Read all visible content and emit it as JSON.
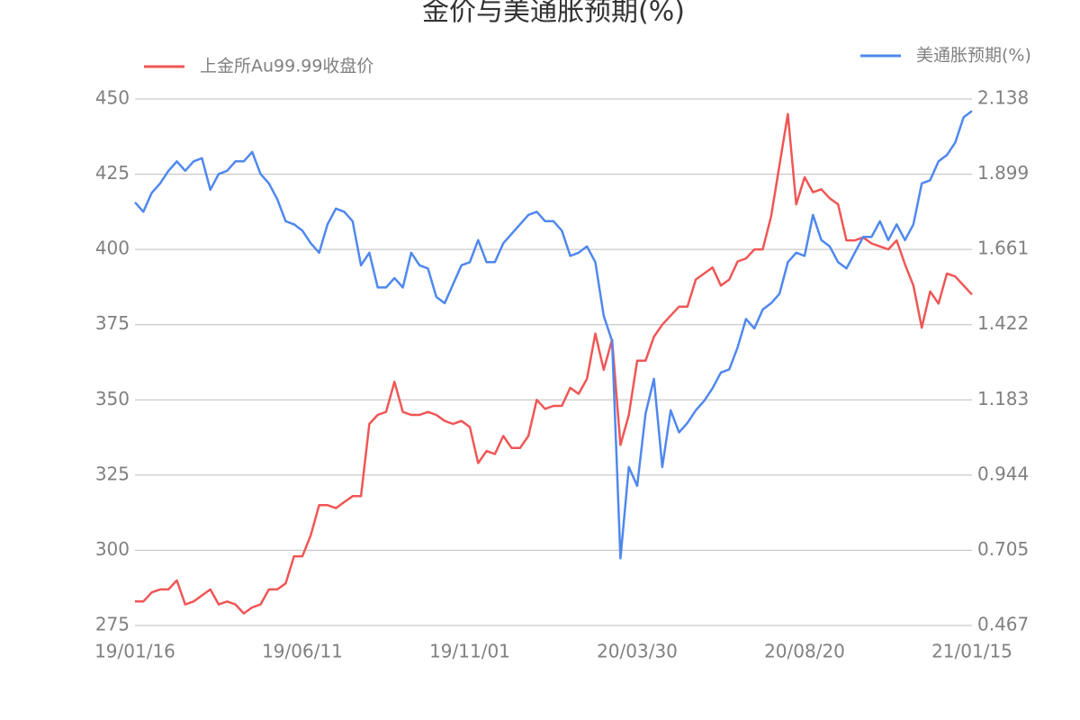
{
  "chart_data": {
    "type": "line",
    "title": "金价与美通胀预期(%)",
    "categories": [
      "19/01/16",
      null,
      null,
      null,
      null,
      null,
      null,
      null,
      null,
      null,
      null,
      null,
      null,
      null,
      null,
      null,
      null,
      null,
      null,
      null,
      "19/06/11",
      null,
      null,
      null,
      null,
      null,
      null,
      null,
      null,
      null,
      null,
      null,
      null,
      null,
      null,
      null,
      null,
      null,
      null,
      null,
      "19/11/01",
      null,
      null,
      null,
      null,
      null,
      null,
      null,
      null,
      null,
      null,
      null,
      null,
      null,
      null,
      null,
      null,
      null,
      null,
      null,
      "20/03/30",
      null,
      null,
      null,
      null,
      null,
      null,
      null,
      null,
      null,
      null,
      null,
      null,
      null,
      null,
      null,
      null,
      null,
      null,
      null,
      "20/08/20",
      null,
      null,
      null,
      null,
      null,
      null,
      null,
      null,
      null,
      null,
      null,
      null,
      null,
      null,
      null,
      null,
      null,
      null,
      null,
      "21/01/15"
    ],
    "series": [
      {
        "name": "上金所Au99.99收盘价",
        "color": "#f05656",
        "values": [
          283,
          283,
          286,
          287,
          287,
          290,
          282,
          283,
          285,
          287,
          282,
          283,
          282,
          279,
          281,
          282,
          287,
          287,
          289,
          298,
          298,
          305,
          315,
          315,
          314,
          316,
          318,
          318,
          342,
          345,
          346,
          356,
          346,
          345,
          345,
          346,
          345,
          343,
          342,
          343,
          341,
          329,
          333,
          332,
          338,
          334,
          334,
          338,
          350,
          347,
          348,
          348,
          354,
          352,
          357,
          372,
          360,
          370,
          335,
          345,
          363,
          363,
          371,
          375,
          378,
          381,
          381,
          390,
          392,
          394,
          388,
          390,
          396,
          397,
          400,
          400,
          411,
          428,
          445,
          415,
          424,
          419,
          420,
          417,
          415,
          403,
          403,
          404,
          402,
          401,
          400,
          403,
          395,
          388,
          374,
          386,
          382,
          392,
          391,
          388,
          385
        ]
      },
      {
        "name": "美通胀预期(%)",
        "color": "#4f88ee",
        "axis": "y2",
        "values": [
          1.81,
          1.78,
          1.84,
          1.87,
          1.91,
          1.94,
          1.91,
          1.94,
          1.95,
          1.85,
          1.9,
          1.91,
          1.94,
          1.94,
          1.97,
          1.9,
          1.87,
          1.82,
          1.75,
          1.74,
          1.72,
          1.68,
          1.65,
          1.74,
          1.79,
          1.78,
          1.75,
          1.61,
          1.65,
          1.54,
          1.54,
          1.57,
          1.54,
          1.65,
          1.61,
          1.6,
          1.51,
          1.49,
          1.55,
          1.61,
          1.62,
          1.69,
          1.62,
          1.62,
          1.68,
          1.71,
          1.74,
          1.77,
          1.78,
          1.75,
          1.75,
          1.72,
          1.64,
          1.65,
          1.67,
          1.62,
          1.45,
          1.37,
          0.68,
          0.97,
          0.91,
          1.14,
          1.25,
          0.97,
          1.15,
          1.08,
          1.11,
          1.15,
          1.18,
          1.22,
          1.27,
          1.28,
          1.35,
          1.44,
          1.41,
          1.47,
          1.49,
          1.52,
          1.62,
          1.65,
          1.64,
          1.77,
          1.69,
          1.67,
          1.62,
          1.6,
          1.65,
          1.7,
          1.7,
          1.75,
          1.69,
          1.74,
          1.69,
          1.74,
          1.87,
          1.88,
          1.94,
          1.96,
          2.0,
          2.08,
          2.1
        ]
      }
    ],
    "ylim": [
      275,
      450
    ],
    "yticks": [
      275,
      300,
      325,
      350,
      375,
      400,
      425,
      450
    ],
    "y2lim": [
      0.467,
      2.138
    ],
    "y2ticks": [
      0.467,
      0.705,
      0.944,
      1.183,
      1.422,
      1.661,
      1.899,
      2.138
    ],
    "grid": true
  }
}
